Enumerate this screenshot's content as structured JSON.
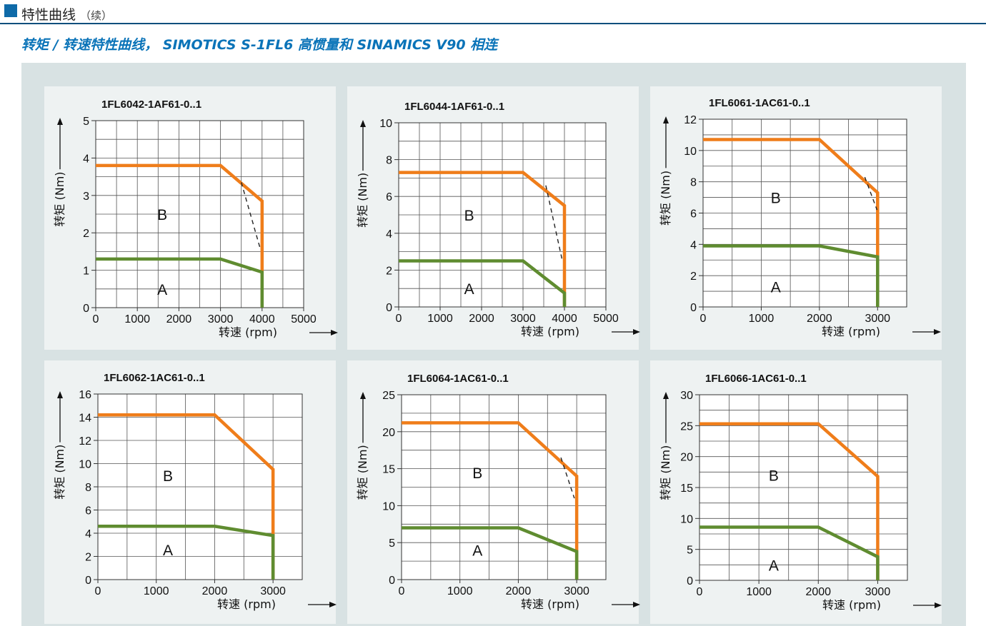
{
  "header": {
    "title": "特性曲线",
    "suffix": "（续）"
  },
  "subtitle": "转矩 / 转速特性曲线， SIMOTICS S-1FL6 高惯量和 SINAMICS V90 相连",
  "colors": {
    "curve_B": "#ef7d1a",
    "curve_A": "#5f8c30",
    "grid": "#555555",
    "panel_bg": "#eef2f2",
    "area_bg": "#d8e2e3",
    "header_accent": "#0e6aa8",
    "subtitle": "#0a73b8"
  },
  "chart_data": [
    {
      "type": "line",
      "title": "1FL6042-1AF61-0..1",
      "xlabel": "转速 (rpm)",
      "ylabel": "转矩 (Nm)",
      "xlim": [
        0,
        5000
      ],
      "ylim": [
        0,
        5
      ],
      "xticks": [
        0,
        1000,
        2000,
        3000,
        4000,
        5000
      ],
      "yticks": [
        0,
        1,
        2,
        3,
        4,
        5
      ],
      "xgrid_step": 500,
      "ygrid_step": 0.5,
      "region_labels": [
        {
          "text": "B",
          "x": 1600,
          "y": 2.5
        },
        {
          "text": "A",
          "x": 1600,
          "y": 0.5
        }
      ],
      "series": [
        {
          "name": "B",
          "style": "solid",
          "x": [
            0,
            3000,
            4000,
            4000
          ],
          "y": [
            3.8,
            3.8,
            2.85,
            0
          ]
        },
        {
          "name": "A",
          "style": "solid",
          "x": [
            0,
            3000,
            4000,
            4000
          ],
          "y": [
            1.3,
            1.3,
            0.95,
            0
          ]
        },
        {
          "name": "dashed",
          "style": "dashed",
          "x": [
            3500,
            3950
          ],
          "y": [
            3.35,
            1.6
          ]
        }
      ]
    },
    {
      "type": "line",
      "title": "1FL6044-1AF61-0..1",
      "xlabel": "转速 (rpm)",
      "ylabel": "转矩 (Nm)",
      "xlim": [
        0,
        5000
      ],
      "ylim": [
        0,
        10
      ],
      "xticks": [
        0,
        1000,
        2000,
        3000,
        4000,
        5000
      ],
      "yticks": [
        0,
        2,
        4,
        6,
        8,
        10
      ],
      "xgrid_step": 500,
      "ygrid_step": 1,
      "region_labels": [
        {
          "text": "B",
          "x": 1700,
          "y": 5
        },
        {
          "text": "A",
          "x": 1700,
          "y": 1
        }
      ],
      "series": [
        {
          "name": "B",
          "style": "solid",
          "x": [
            0,
            3000,
            4000,
            4000
          ],
          "y": [
            7.3,
            7.3,
            5.5,
            0
          ]
        },
        {
          "name": "A",
          "style": "solid",
          "x": [
            0,
            3000,
            4000,
            4000
          ],
          "y": [
            2.5,
            2.5,
            0.75,
            0
          ]
        },
        {
          "name": "dashed",
          "style": "dashed",
          "x": [
            3550,
            3950
          ],
          "y": [
            6.6,
            2.5
          ]
        }
      ]
    },
    {
      "type": "line",
      "title": "1FL6061-1AC61-0..1",
      "xlabel": "转速 (rpm)",
      "ylabel": "转矩 (Nm)",
      "xlim": [
        0,
        3500
      ],
      "ylim": [
        0,
        12
      ],
      "xticks": [
        0,
        1000,
        2000,
        3000
      ],
      "yticks": [
        0,
        2,
        4,
        6,
        8,
        10,
        12
      ],
      "xgrid_step": 500,
      "ygrid_step": 1,
      "region_labels": [
        {
          "text": "B",
          "x": 1250,
          "y": 7
        },
        {
          "text": "A",
          "x": 1250,
          "y": 1.3
        }
      ],
      "series": [
        {
          "name": "B",
          "style": "solid",
          "x": [
            0,
            2000,
            3000,
            3000
          ],
          "y": [
            10.7,
            10.7,
            7.3,
            0
          ]
        },
        {
          "name": "A",
          "style": "solid",
          "x": [
            0,
            2000,
            3000,
            3000
          ],
          "y": [
            3.9,
            3.9,
            3.2,
            0
          ]
        },
        {
          "name": "dashed",
          "style": "dashed",
          "x": [
            2780,
            2990
          ],
          "y": [
            8.3,
            6.2
          ]
        }
      ]
    },
    {
      "type": "line",
      "title": "1FL6062-1AC61-0..1",
      "xlabel": "转速 (rpm)",
      "ylabel": "转矩 (Nm)",
      "xlim": [
        0,
        3500
      ],
      "ylim": [
        0,
        16
      ],
      "xticks": [
        0,
        1000,
        2000,
        3000
      ],
      "yticks": [
        0,
        2,
        4,
        6,
        8,
        10,
        12,
        14,
        16
      ],
      "xgrid_step": 500,
      "ygrid_step": 2,
      "region_labels": [
        {
          "text": "B",
          "x": 1200,
          "y": 9
        },
        {
          "text": "A",
          "x": 1200,
          "y": 2.6
        }
      ],
      "series": [
        {
          "name": "B",
          "style": "solid",
          "x": [
            0,
            2000,
            3000,
            3000
          ],
          "y": [
            14.2,
            14.2,
            9.5,
            0
          ]
        },
        {
          "name": "A",
          "style": "solid",
          "x": [
            0,
            2000,
            3000,
            3000
          ],
          "y": [
            4.6,
            4.6,
            3.8,
            0
          ]
        }
      ]
    },
    {
      "type": "line",
      "title": "1FL6064-1AC61-0..1",
      "xlabel": "转速 (rpm)",
      "ylabel": "转矩 (Nm)",
      "xlim": [
        0,
        3500
      ],
      "ylim": [
        0,
        25
      ],
      "xticks": [
        0,
        1000,
        2000,
        3000
      ],
      "yticks": [
        0,
        5,
        10,
        15,
        20,
        25
      ],
      "xgrid_step": 500,
      "ygrid_step": 2.5,
      "region_labels": [
        {
          "text": "B",
          "x": 1300,
          "y": 14.5
        },
        {
          "text": "A",
          "x": 1300,
          "y": 4
        }
      ],
      "series": [
        {
          "name": "B",
          "style": "solid",
          "x": [
            0,
            2000,
            3000,
            3000
          ],
          "y": [
            21.2,
            21.2,
            14,
            0
          ]
        },
        {
          "name": "A",
          "style": "solid",
          "x": [
            0,
            2000,
            3000,
            3000
          ],
          "y": [
            7,
            7,
            3.8,
            0
          ]
        },
        {
          "name": "dashed",
          "style": "dashed",
          "x": [
            2730,
            2960
          ],
          "y": [
            16.5,
            11
          ]
        }
      ]
    },
    {
      "type": "line",
      "title": "1FL6066-1AC61-0..1",
      "xlabel": "转速 (rpm)",
      "ylabel": "转矩 (Nm)",
      "xlim": [
        0,
        3500
      ],
      "ylim": [
        0,
        30
      ],
      "xticks": [
        0,
        1000,
        2000,
        3000
      ],
      "yticks": [
        0,
        5,
        10,
        15,
        20,
        25,
        30
      ],
      "xgrid_step": 500,
      "ygrid_step": 2.5,
      "region_labels": [
        {
          "text": "B",
          "x": 1250,
          "y": 17
        },
        {
          "text": "A",
          "x": 1250,
          "y": 2.5
        }
      ],
      "series": [
        {
          "name": "B",
          "style": "solid",
          "x": [
            0,
            2000,
            3000,
            3000
          ],
          "y": [
            25.3,
            25.3,
            16.8,
            0
          ]
        },
        {
          "name": "A",
          "style": "solid",
          "x": [
            0,
            2000,
            3000,
            3000
          ],
          "y": [
            8.6,
            8.6,
            3.8,
            0
          ]
        }
      ]
    }
  ]
}
